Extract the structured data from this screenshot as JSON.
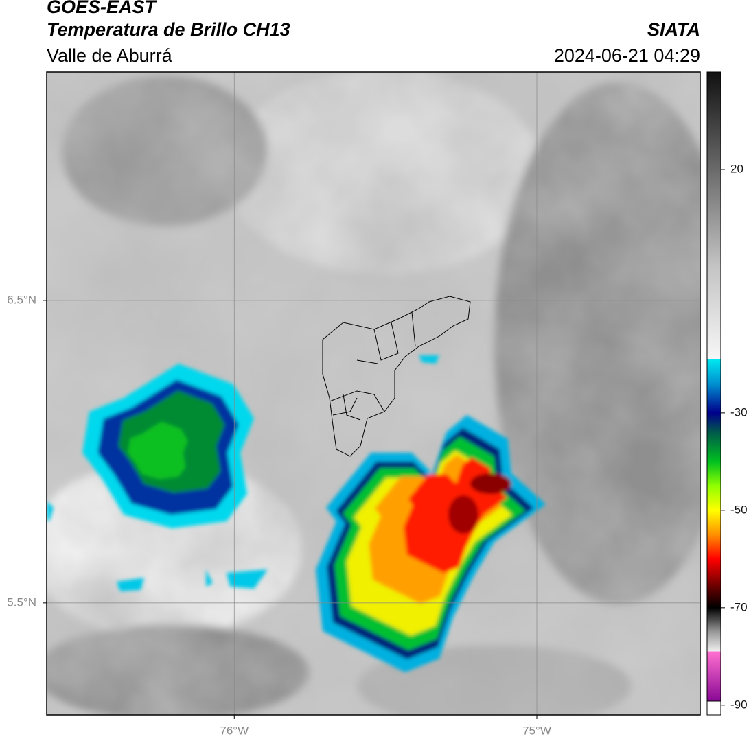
{
  "header": {
    "title": "GOES-EAST",
    "subtitle": "Temperatura de Brillo CH13",
    "region": "Valle de Aburrá",
    "source": "SIATA",
    "timestamp": "2024-06-21 04:29"
  },
  "map": {
    "lonlim": [
      -76.62,
      -74.46
    ],
    "latlim": [
      5.13,
      7.255
    ],
    "lon_ticks": [
      {
        "value": -76,
        "label": "76°W"
      },
      {
        "value": -75,
        "label": "75°W"
      }
    ],
    "lat_ticks": [
      {
        "value": 6.5,
        "label": "6.5°N"
      },
      {
        "value": 5.5,
        "label": "5.5°N"
      }
    ]
  },
  "colorbar": {
    "lim": [
      -92,
      40
    ],
    "ticks": [
      20,
      -30,
      -50,
      -70,
      -90
    ],
    "colors": [
      {
        "value": 40,
        "color": "#111111"
      },
      {
        "value": 20,
        "color": "#6a6a6a"
      },
      {
        "value": 0,
        "color": "#c4c4c4"
      },
      {
        "value": -19,
        "color": "#f7f7f7"
      },
      {
        "value": -19,
        "color": "#00e8f0"
      },
      {
        "value": -24,
        "color": "#0090d0"
      },
      {
        "value": -30,
        "color": "#00008b"
      },
      {
        "value": -34,
        "color": "#005a4a"
      },
      {
        "value": -40,
        "color": "#00c020"
      },
      {
        "value": -45,
        "color": "#90ff00"
      },
      {
        "value": -50,
        "color": "#ffff00"
      },
      {
        "value": -55,
        "color": "#ff9000"
      },
      {
        "value": -60,
        "color": "#ff0000"
      },
      {
        "value": -66,
        "color": "#600000"
      },
      {
        "value": -70,
        "color": "#000000"
      },
      {
        "value": -75,
        "color": "#999999"
      },
      {
        "value": -79,
        "color": "#f0f0f0"
      },
      {
        "value": -79,
        "color": "#ff70d0"
      },
      {
        "value": -90,
        "color": "#800090"
      }
    ]
  }
}
